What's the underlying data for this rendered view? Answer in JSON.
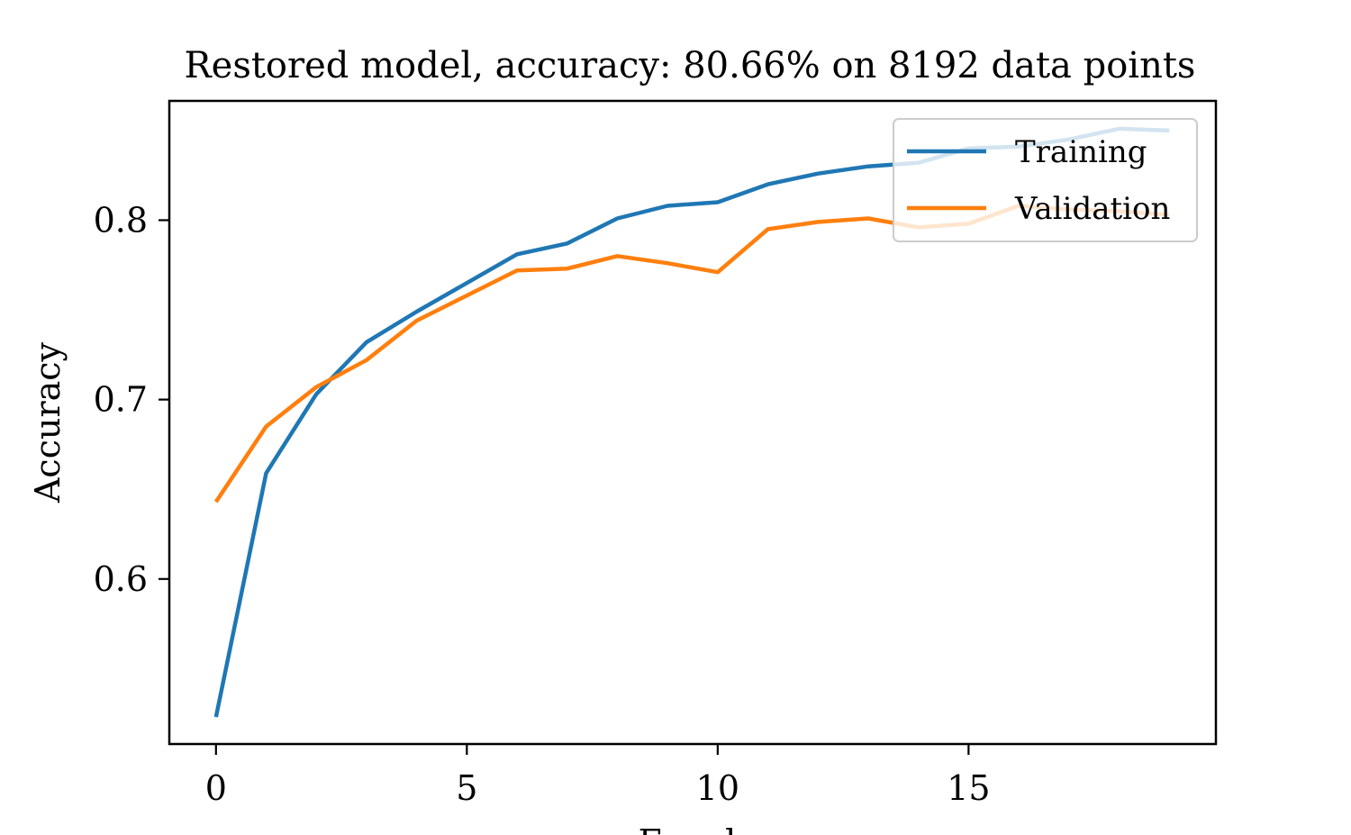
{
  "chart_data": {
    "type": "line",
    "title": "Restored model, accuracy: 80.66% on 8192 data points",
    "xlabel": "Epoch",
    "ylabel": "Accuracy",
    "xlim": [
      -0.93,
      19.93
    ],
    "ylim": [
      0.508,
      0.8665
    ],
    "xticks": [
      0,
      5,
      10,
      15
    ],
    "yticks": [
      0.6,
      0.7,
      0.8
    ],
    "ytick_labels": [
      "0.6",
      "0.7",
      "0.8"
    ],
    "grid": false,
    "legend_position": "top-right",
    "x": [
      0,
      1,
      2,
      3,
      4,
      5,
      6,
      7,
      8,
      9,
      10,
      11,
      12,
      13,
      14,
      15,
      16,
      17,
      18,
      19
    ],
    "series": [
      {
        "name": "Training",
        "color": "#1f77b4",
        "values": [
          0.523,
          0.659,
          0.703,
          0.732,
          0.749,
          0.765,
          0.781,
          0.787,
          0.801,
          0.808,
          0.81,
          0.82,
          0.826,
          0.83,
          0.832,
          0.84,
          0.841,
          0.845,
          0.851,
          0.85
        ]
      },
      {
        "name": "Validation",
        "color": "#ff7f0e",
        "values": [
          0.643,
          0.685,
          0.707,
          0.722,
          0.744,
          0.758,
          0.772,
          0.773,
          0.78,
          0.776,
          0.771,
          0.795,
          0.799,
          0.801,
          0.796,
          0.798,
          0.808,
          0.806,
          0.805,
          0.803
        ]
      }
    ]
  }
}
